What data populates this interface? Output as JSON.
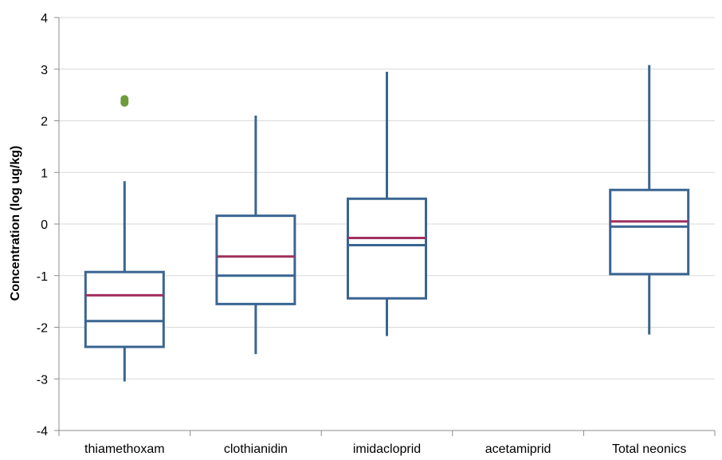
{
  "chart_data": {
    "type": "boxplot",
    "title": "",
    "xlabel": "",
    "ylabel": "Concentration (log ug/kg)",
    "ylim": [
      -4,
      4
    ],
    "yticks": [
      "-4",
      "-3",
      "-2",
      "-1",
      "0",
      "1",
      "2",
      "3",
      "4"
    ],
    "grid": true,
    "categories": [
      "thiamethoxam",
      "clothianidin",
      "imidacloprid",
      "acetamiprid",
      "Total neonics"
    ],
    "boxes": [
      {
        "category": "thiamethoxam",
        "min": -3.05,
        "q1": -2.38,
        "median": -1.88,
        "mean": -1.38,
        "q3": -0.93,
        "max": 0.83,
        "outliers": [
          2.35,
          2.38,
          2.42
        ]
      },
      {
        "category": "clothianidin",
        "min": -2.52,
        "q1": -1.55,
        "median": -1.0,
        "mean": -0.63,
        "q3": 0.16,
        "max": 2.1,
        "outliers": []
      },
      {
        "category": "imidacloprid",
        "min": -2.17,
        "q1": -1.44,
        "median": -0.41,
        "mean": -0.27,
        "q3": 0.49,
        "max": 2.95,
        "outliers": []
      },
      {
        "category": "acetamiprid",
        "min": null,
        "q1": null,
        "median": null,
        "mean": null,
        "q3": null,
        "max": null,
        "outliers": []
      },
      {
        "category": "Total neonics",
        "min": -2.14,
        "q1": -0.97,
        "median": -0.05,
        "mean": 0.05,
        "q3": 0.66,
        "max": 3.08,
        "outliers": []
      }
    ],
    "colors": {
      "box": "#3a6591",
      "mean": "#a0305f",
      "outlier": "#6e9c3a",
      "grid": "#d9d9d9",
      "axis": "#8c8c8c"
    }
  }
}
